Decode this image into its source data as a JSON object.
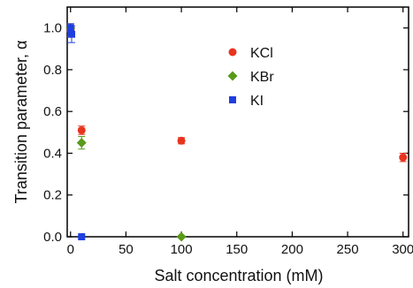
{
  "chart_data": {
    "type": "scatter",
    "title": "",
    "xlabel": "Salt concentration (mM)",
    "ylabel": "Transition parameter, α",
    "xlim": [
      -3,
      305
    ],
    "ylim": [
      0,
      1.1
    ],
    "xticks": [
      0,
      50,
      100,
      150,
      200,
      250,
      300
    ],
    "yticks": [
      0.0,
      0.2,
      0.4,
      0.6,
      0.8,
      1.0
    ],
    "ytick_labels": [
      "0.0",
      "0.2",
      "0.4",
      "0.6",
      "0.8",
      "1.0"
    ],
    "grid": false,
    "legend": "upper-middle",
    "series": [
      {
        "name": "KCl",
        "marker": "circle",
        "color": "#e8341f",
        "points": [
          {
            "x": 0,
            "y": 0.99,
            "err": 0.03
          },
          {
            "x": 10,
            "y": 0.51,
            "err": 0.02
          },
          {
            "x": 100,
            "y": 0.46,
            "err": 0.015
          },
          {
            "x": 300,
            "y": 0.38,
            "err": 0.02
          }
        ]
      },
      {
        "name": "KBr",
        "marker": "diamond",
        "color": "#5a9a1a",
        "points": [
          {
            "x": 0,
            "y": 1.0,
            "err": 0.02
          },
          {
            "x": 10,
            "y": 0.45,
            "err": 0.03
          },
          {
            "x": 100,
            "y": 0.0,
            "err": 0.005
          }
        ]
      },
      {
        "name": "KI",
        "marker": "square",
        "color": "#1f3fe0",
        "points": [
          {
            "x": 0,
            "y": 1.0,
            "err": 0.02
          },
          {
            "x": 1,
            "y": 0.97,
            "err": 0.04
          },
          {
            "x": 10,
            "y": 0.0,
            "err": 0.005
          }
        ]
      }
    ]
  }
}
